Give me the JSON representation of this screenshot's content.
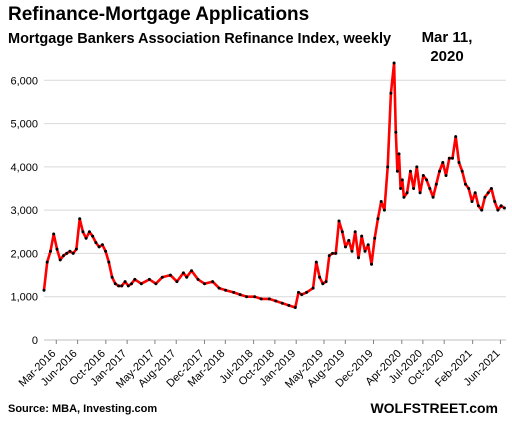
{
  "chart_data": {
    "type": "line",
    "title": "Refinance-Mortgage  Applications",
    "subtitle": "Mortgage Bankers Association Refinance Index, weekly",
    "annotation": {
      "text_line1": "Mar 11,",
      "text_line2": "2020",
      "x": "2020-03-11",
      "y": 6400
    },
    "source": "Source: MBA, Investing.com",
    "brand": "WOLFSTREET.com",
    "ylim": [
      0,
      6700
    ],
    "yticks": [
      0,
      1000,
      2000,
      3000,
      4000,
      5000,
      6000
    ],
    "ytick_labels": [
      "0",
      "1,000",
      "2,000",
      "3,000",
      "4,000",
      "5,000",
      "6,000"
    ],
    "xlim": [
      "2016-01-08",
      "2021-06-25"
    ],
    "xtick_labels": [
      "Mar-2016",
      "Jun-2016",
      "Oct-2016",
      "Jan-2017",
      "May-2017",
      "Aug-2017",
      "Dec-2017",
      "Mar-2018",
      "Jul-2018",
      "Oct-2018",
      "Jan-2019",
      "May-2019",
      "Aug-2019",
      "Dec-2019",
      "Apr-2020",
      "Jul-2020",
      "Oct-2020",
      "Feb-2021",
      "Jun-2021"
    ],
    "xtick_dates": [
      "2016-03-01",
      "2016-06-01",
      "2016-10-01",
      "2017-01-01",
      "2017-05-01",
      "2017-08-01",
      "2017-12-01",
      "2018-03-01",
      "2018-07-01",
      "2018-10-01",
      "2019-01-01",
      "2019-05-01",
      "2019-08-01",
      "2019-12-01",
      "2020-04-01",
      "2020-07-01",
      "2020-10-01",
      "2021-02-01",
      "2021-06-01"
    ],
    "line_color": "#ff0000",
    "marker_color": "#000000",
    "series": [
      {
        "x": [
          "2016-01-08",
          "2016-01-22",
          "2016-02-05",
          "2016-02-19",
          "2016-03-04",
          "2016-03-18",
          "2016-04-01",
          "2016-04-15",
          "2016-04-29",
          "2016-05-13",
          "2016-05-27",
          "2016-06-10",
          "2016-06-24",
          "2016-07-08",
          "2016-07-22",
          "2016-08-05",
          "2016-08-19",
          "2016-09-02",
          "2016-09-16",
          "2016-09-30",
          "2016-10-14",
          "2016-10-28",
          "2016-11-11",
          "2016-11-25",
          "2016-12-09",
          "2016-12-23",
          "2017-01-06",
          "2017-01-20",
          "2017-02-03",
          "2017-03-03",
          "2017-04-07",
          "2017-05-05",
          "2017-06-02",
          "2017-07-07",
          "2017-08-04",
          "2017-09-01",
          "2017-09-15",
          "2017-10-06",
          "2017-11-03",
          "2017-12-01",
          "2018-01-05",
          "2018-02-02",
          "2018-03-02",
          "2018-04-06",
          "2018-05-04",
          "2018-06-01",
          "2018-07-06",
          "2018-08-03",
          "2018-09-07",
          "2018-10-05",
          "2018-11-02",
          "2018-11-30",
          "2018-12-28",
          "2019-01-11",
          "2019-01-25",
          "2019-02-15",
          "2019-03-15",
          "2019-03-29",
          "2019-04-12",
          "2019-04-26",
          "2019-05-10",
          "2019-05-24",
          "2019-06-07",
          "2019-06-21",
          "2019-07-05",
          "2019-07-19",
          "2019-08-02",
          "2019-08-16",
          "2019-08-30",
          "2019-09-13",
          "2019-09-27",
          "2019-10-11",
          "2019-10-25",
          "2019-11-08",
          "2019-11-22",
          "2019-12-06",
          "2019-12-20",
          "2020-01-03",
          "2020-01-17",
          "2020-01-31",
          "2020-02-14",
          "2020-02-28",
          "2020-03-06",
          "2020-03-13",
          "2020-03-20",
          "2020-03-27",
          "2020-04-03",
          "2020-04-10",
          "2020-04-24",
          "2020-05-08",
          "2020-05-22",
          "2020-06-05",
          "2020-06-19",
          "2020-07-03",
          "2020-07-17",
          "2020-07-31",
          "2020-08-14",
          "2020-08-28",
          "2020-09-11",
          "2020-09-25",
          "2020-10-09",
          "2020-10-23",
          "2020-11-06",
          "2020-11-20",
          "2020-12-04",
          "2020-12-18",
          "2021-01-01",
          "2021-01-15",
          "2021-01-29",
          "2021-02-12",
          "2021-02-26",
          "2021-03-12",
          "2021-03-26",
          "2021-04-09",
          "2021-04-23",
          "2021-05-07",
          "2021-05-21",
          "2021-06-04",
          "2021-06-18"
        ],
        "y": [
          1150,
          1800,
          2050,
          2450,
          2100,
          1850,
          1950,
          2000,
          2050,
          2000,
          2100,
          2800,
          2500,
          2350,
          2500,
          2400,
          2250,
          2150,
          2200,
          2050,
          1800,
          1450,
          1300,
          1250,
          1250,
          1350,
          1250,
          1300,
          1400,
          1300,
          1400,
          1300,
          1450,
          1500,
          1350,
          1550,
          1450,
          1600,
          1400,
          1300,
          1350,
          1200,
          1150,
          1100,
          1050,
          1000,
          1000,
          950,
          950,
          900,
          850,
          800,
          750,
          1100,
          1050,
          1100,
          1200,
          1800,
          1450,
          1300,
          1350,
          1950,
          2000,
          2000,
          2750,
          2500,
          2150,
          2300,
          2050,
          2500,
          1900,
          2400,
          2050,
          2200,
          1750,
          2350,
          2800,
          3200,
          3000,
          4000,
          5700,
          6400,
          4800,
          3900,
          4300,
          3500,
          3700,
          3300,
          3400,
          3900,
          3500,
          4000,
          3400,
          3800,
          3700,
          3500,
          3300,
          3600,
          3900,
          4100,
          3800,
          4200,
          4200,
          4700,
          4100,
          3900,
          3600,
          3500,
          3200,
          3400,
          3100,
          3000,
          3300,
          3400,
          3500,
          3200,
          3000,
          3100,
          3050
        ]
      }
    ]
  }
}
